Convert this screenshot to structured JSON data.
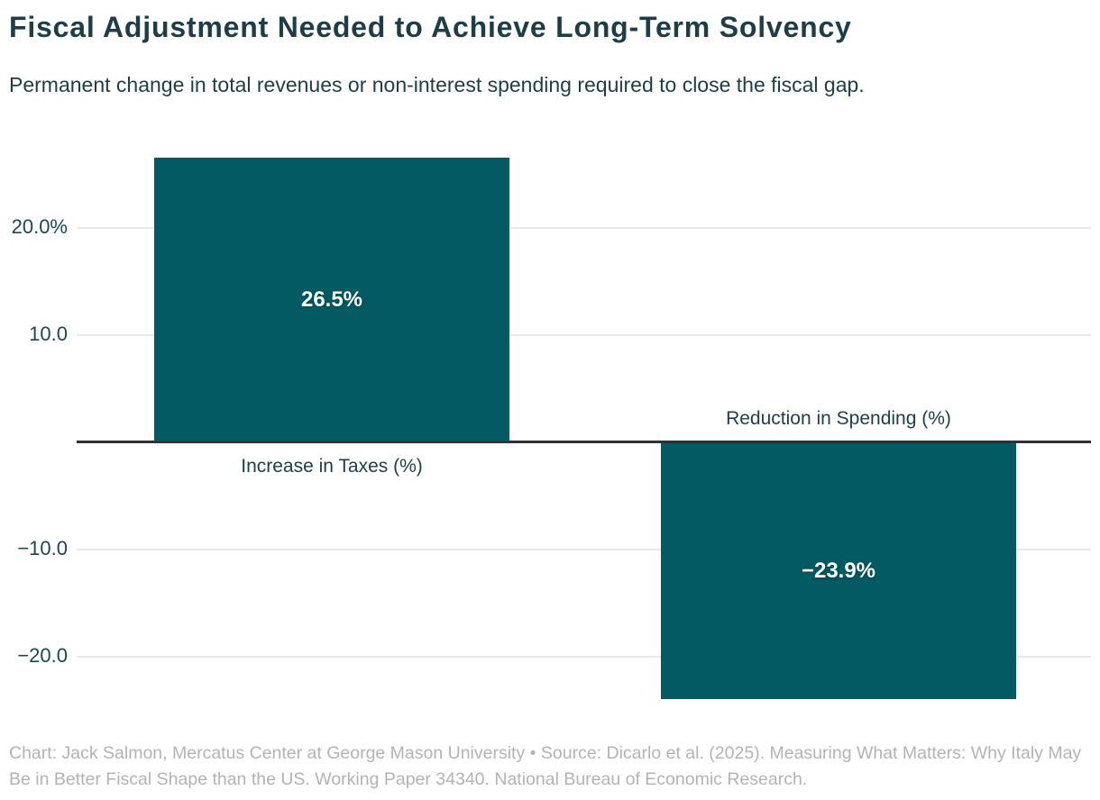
{
  "header": {
    "title": "Fiscal Adjustment Needed to Achieve Long-Term Solvency",
    "subtitle": "Permanent change in total revenues or non-interest spending required to close the fiscal gap."
  },
  "footer": {
    "caption": "Chart: Jack Salmon, Mercatus Center at George Mason University • Source: Dicarlo et al. (2025). Measuring What Matters: Why Italy May Be in Better Fiscal Shape than the US. Working Paper 34340. National Bureau of Economic Research."
  },
  "colors": {
    "bar": "#045a62",
    "title_text": "#1e3d47",
    "axis_text": "#1d4651",
    "gridline": "#e8e8e8",
    "zero_line": "#303030",
    "value_label_text": "#ffffff",
    "caption_text": "#b3b3b3",
    "background": "#ffffff"
  },
  "chart_data": {
    "type": "bar",
    "title": "Fiscal Adjustment Needed to Achieve Long-Term Solvency",
    "subtitle": "Permanent change in total revenues or non-interest spending required to close the fiscal gap.",
    "categories": [
      "Increase in Taxes (%)",
      "Reduction in Spending (%)"
    ],
    "values": [
      26.5,
      -23.9
    ],
    "value_labels": [
      "26.5%",
      "−23.9%"
    ],
    "y_ticks": [
      {
        "value": 20,
        "label": "20.0%"
      },
      {
        "value": 10,
        "label": "10.0"
      },
      {
        "value": -10,
        "label": "−10.0"
      },
      {
        "value": -20,
        "label": "−20.0"
      }
    ],
    "ylim": [
      -24.1,
      26.5
    ],
    "grid": true,
    "legend_position": "none",
    "bar_color": "#045a62",
    "xlabel": "",
    "ylabel": ""
  }
}
